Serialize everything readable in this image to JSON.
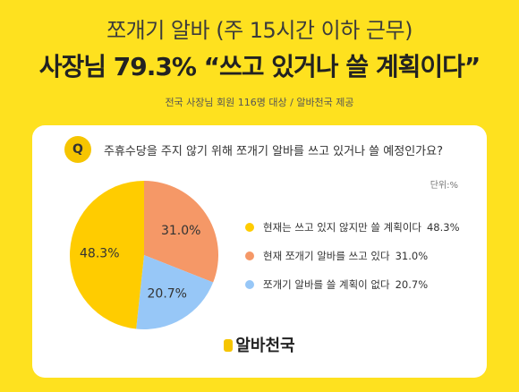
{
  "header": {
    "line1": "쪼개기 알바 (주 15시간 이하 근무)",
    "line2": "사장님 79.3% “쓰고 있거나 쓸 계획이다”",
    "source": "전국 사장님 회원 116명 대상 / 알바천국 제공"
  },
  "card": {
    "badge": "Q",
    "question": "주휴수당을 주지 않기 위해 쪼개기 알바를 쓰고 있거나 쓸 예정인가요?",
    "unit": "단위:%"
  },
  "brand": "알바천국",
  "colors": {
    "background": "#FEE11F",
    "slice1": "#FFCC00",
    "slice2": "#F59867",
    "slice3": "#97C7F7"
  },
  "chart_data": {
    "type": "pie",
    "categories": [
      "현재는 쓰고 있지 않지만 쓸 계획이다",
      "현재 쪼개기 알바를 쓰고 있다",
      "쪼개기 알바를 쓸 계획이 없다"
    ],
    "values": [
      48.3,
      31.0,
      20.7
    ],
    "value_labels": [
      "48.3%",
      "31.0%",
      "20.7%"
    ],
    "legend_values": [
      "48.3%",
      "31.0%",
      "20.7%"
    ],
    "colors": [
      "#FFCC00",
      "#F59867",
      "#97C7F7"
    ],
    "unit": "%",
    "legend_placement": "right"
  }
}
